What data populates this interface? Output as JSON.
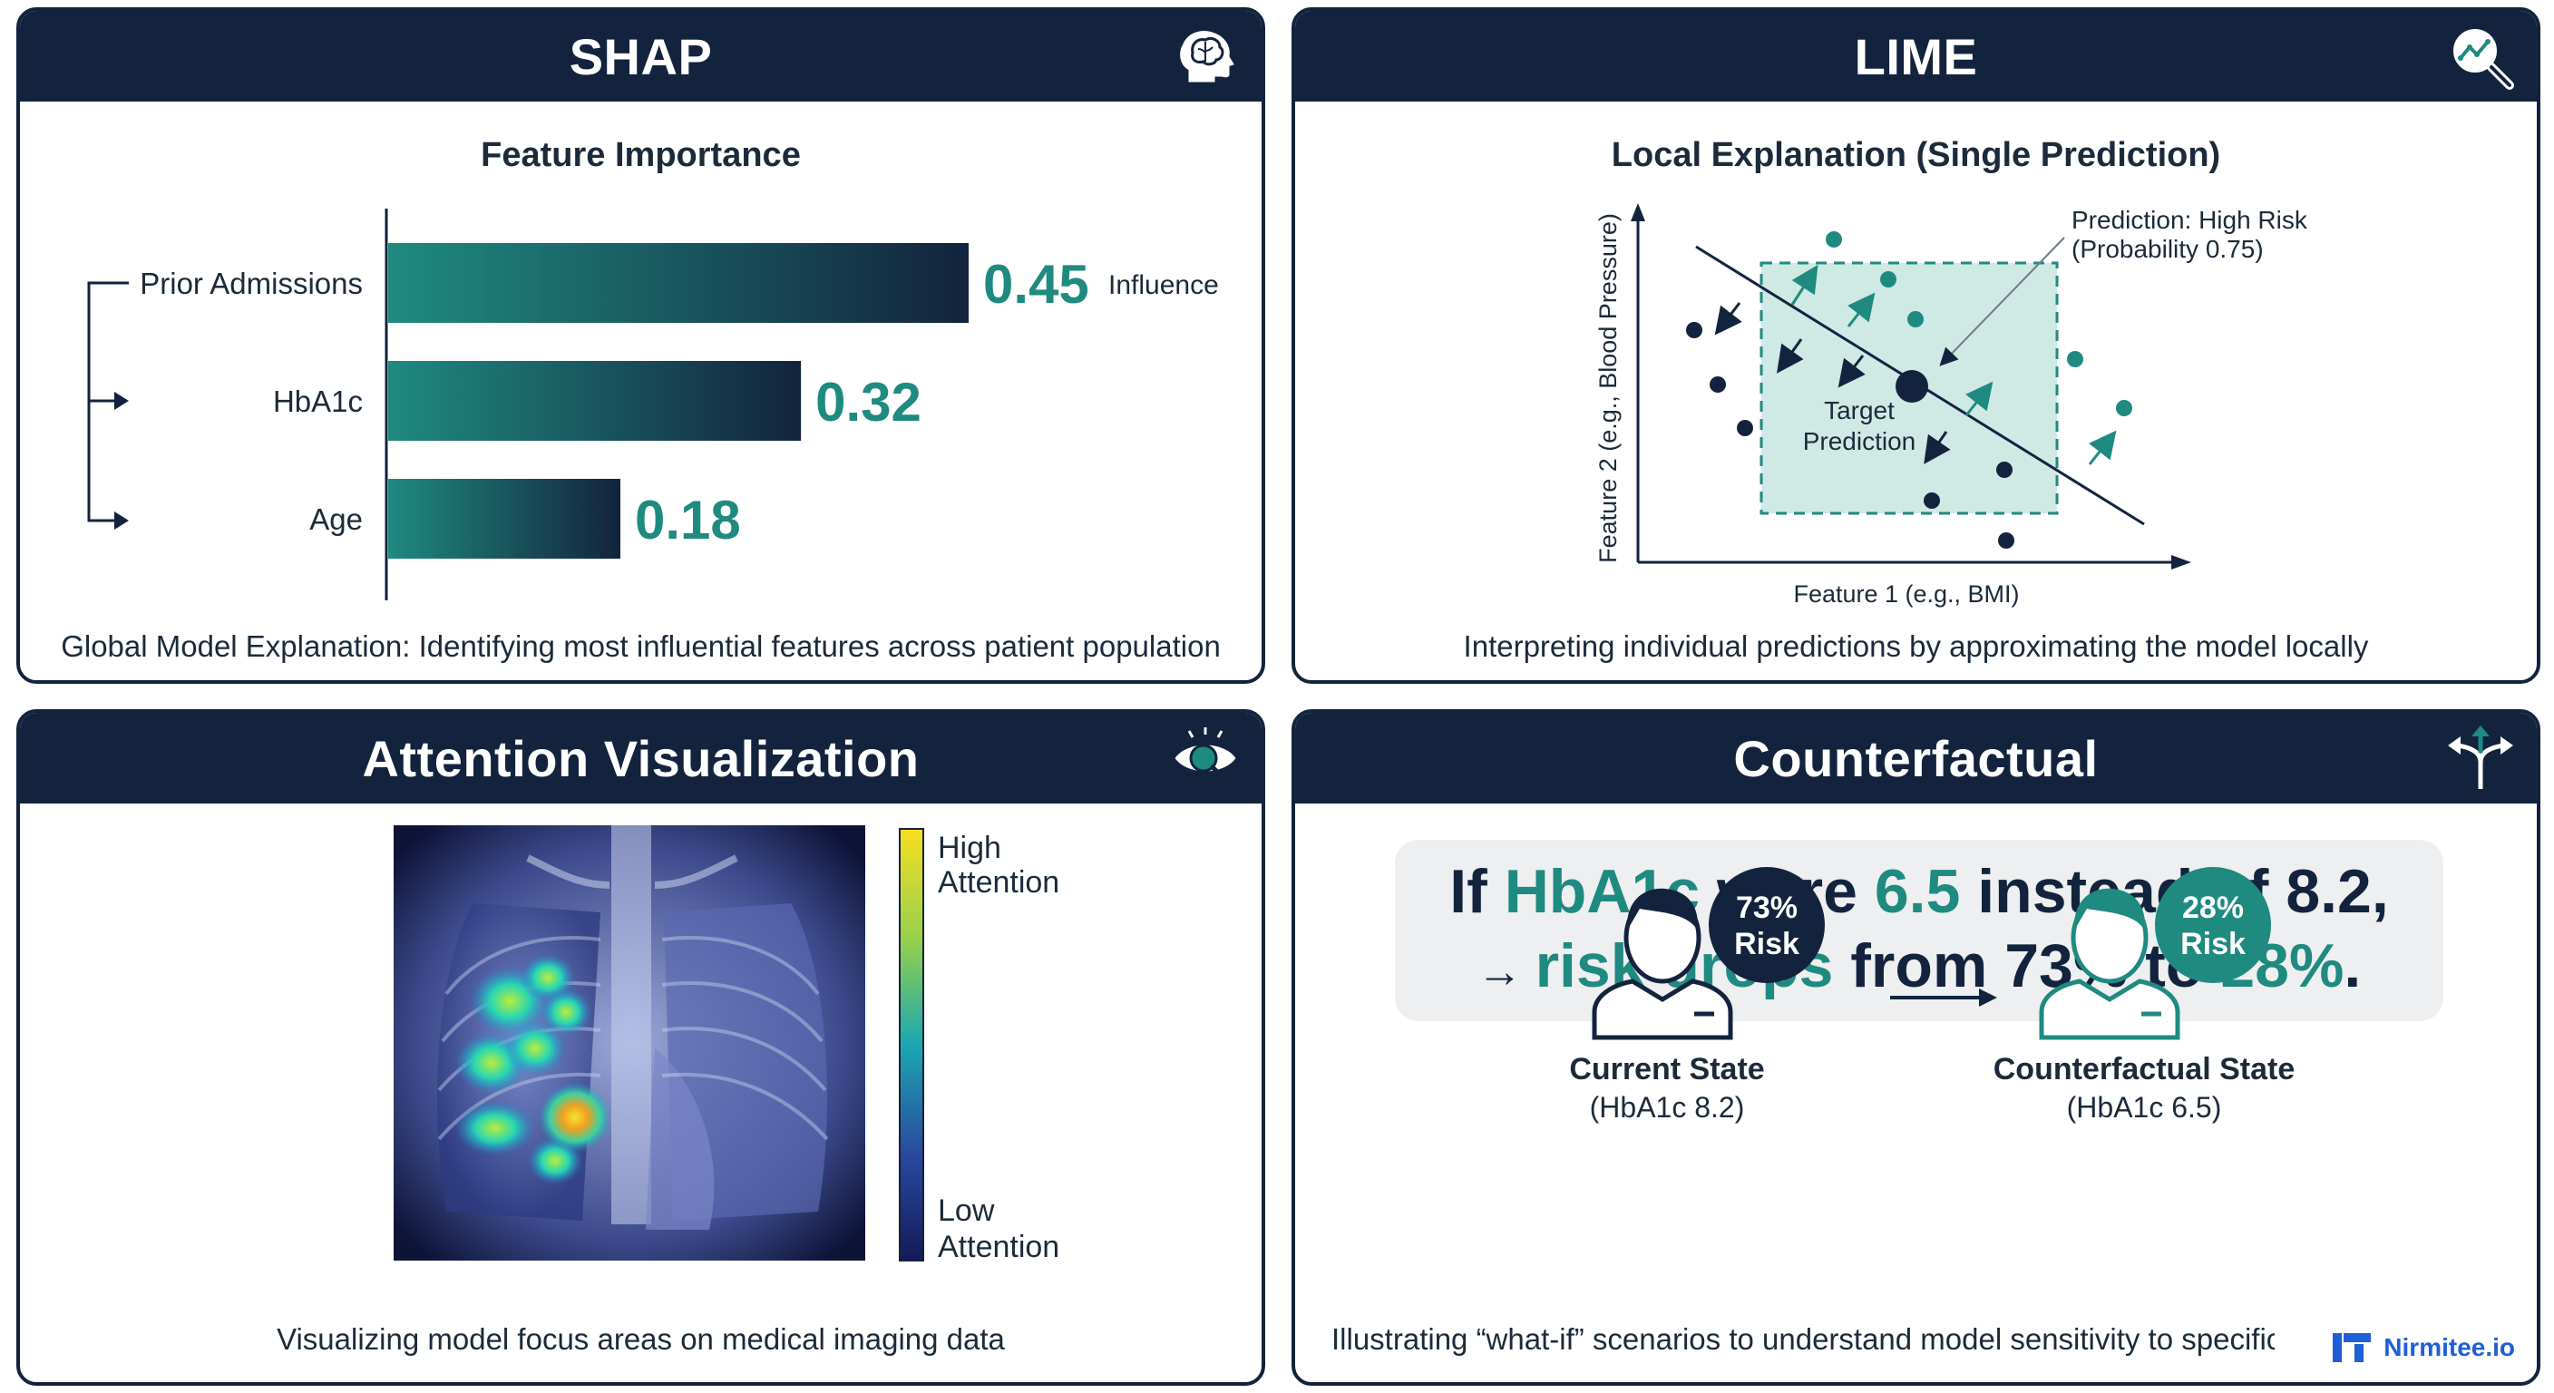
{
  "shap": {
    "title": "SHAP",
    "icon": "brain-head-icon",
    "subtitle": "Feature Importance",
    "caption": "Global Model Explanation: Identifying most influential features across patient population",
    "influence_label": "Influence",
    "colors": {
      "bar_start": "#1f8a80",
      "bar_end": "#13233d",
      "value": "#1f8a80"
    }
  },
  "chart_data": {
    "type": "bar",
    "orientation": "horizontal",
    "categories": [
      "Prior Admissions",
      "HbA1c",
      "Age"
    ],
    "values": [
      0.45,
      0.32,
      0.18
    ],
    "value_labels": [
      "0.45",
      "0.32",
      "0.18"
    ],
    "title": "Feature Importance"
  },
  "lime": {
    "title": "LIME",
    "icon": "magnifier-chart-icon",
    "subtitle": "Local Explanation (Single Prediction)",
    "xlabel": "Feature 1 (e.g., BMI)",
    "ylabel": "Feature 2 (e.g., Blood Pressure)",
    "annotation_line1": "Prediction: High Risk",
    "annotation_line2": "(Probability 0.75)",
    "target_line1": "Target",
    "target_line2": "Prediction",
    "caption": "Interpreting individual predictions by approximating the model locally",
    "colors": {
      "teal": "#1f8a80",
      "navy": "#13233d",
      "box": "#cfe9e5"
    }
  },
  "attention": {
    "title": "Attention Visualization",
    "icon": "eye-magnifier-icon",
    "high_line1": "High",
    "high_line2": "Attention",
    "low_line1": "Low",
    "low_line2": "Attention",
    "caption": "Visualizing model focus areas on medical imaging data"
  },
  "counterfactual": {
    "title": "Counterfactual",
    "icon": "split-arrow-icon",
    "line1": {
      "a": "If ",
      "b": "HbA1c",
      "c": " were ",
      "d": "6.5",
      "e": " instead of 8.2,"
    },
    "line2": {
      "arrow": "→ ",
      "a": "risk drops",
      "b": " from 73% to ",
      "c": "28%",
      "d": "."
    },
    "current_risk_line1": "73%",
    "current_risk_line2": "Risk",
    "cf_risk_line1": "28%",
    "cf_risk_line2": "Risk",
    "current_label": "Current State",
    "current_sub": "(HbA1c 8.2)",
    "cf_label": "Counterfactual State",
    "cf_sub": "(HbA1c 6.5)",
    "caption": "Illustrating “what-if” scenarios to understand model sensitivity to specific",
    "brand": "Nirmitee.io",
    "colors": {
      "teal": "#1f8a80",
      "navy": "#13233d"
    }
  }
}
